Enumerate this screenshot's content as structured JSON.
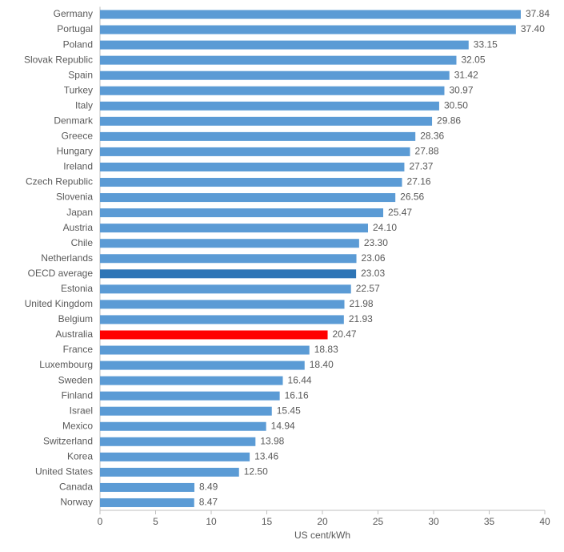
{
  "chart_data": {
    "type": "hbar",
    "categories": [
      "Germany",
      "Portugal",
      "Poland",
      "Slovak Republic",
      "Spain",
      "Turkey",
      "Italy",
      "Denmark",
      "Greece",
      "Hungary",
      "Ireland",
      "Czech Republic",
      "Slovenia",
      "Japan",
      "Austria",
      "Chile",
      "Netherlands",
      "OECD average",
      "Estonia",
      "United Kingdom",
      "Belgium",
      "Australia",
      "France",
      "Luxembourg",
      "Sweden",
      "Finland",
      "Israel",
      "Mexico",
      "Switzerland",
      "Korea",
      "United States",
      "Canada",
      "Norway"
    ],
    "values": [
      37.84,
      37.4,
      33.15,
      32.05,
      31.42,
      30.97,
      30.5,
      29.86,
      28.36,
      27.88,
      27.37,
      27.16,
      26.56,
      25.47,
      24.1,
      23.3,
      23.06,
      23.03,
      22.57,
      21.98,
      21.93,
      20.47,
      18.83,
      18.4,
      16.44,
      16.16,
      15.45,
      14.94,
      13.98,
      13.46,
      12.5,
      8.49,
      8.47
    ],
    "value_labels": [
      "37.84",
      "37.40",
      "33.15",
      "32.05",
      "31.42",
      "30.97",
      "30.50",
      "29.86",
      "28.36",
      "27.88",
      "27.37",
      "27.16",
      "26.56",
      "25.47",
      "24.10",
      "23.30",
      "23.06",
      "23.03",
      "22.57",
      "21.98",
      "21.93",
      "20.47",
      "18.83",
      "18.40",
      "16.44",
      "16.16",
      "15.45",
      "14.94",
      "13.98",
      "13.46",
      "12.50",
      "8.49",
      "8.47"
    ],
    "colors": [
      "#5b9bd5",
      "#5b9bd5",
      "#5b9bd5",
      "#5b9bd5",
      "#5b9bd5",
      "#5b9bd5",
      "#5b9bd5",
      "#5b9bd5",
      "#5b9bd5",
      "#5b9bd5",
      "#5b9bd5",
      "#5b9bd5",
      "#5b9bd5",
      "#5b9bd5",
      "#5b9bd5",
      "#5b9bd5",
      "#5b9bd5",
      "#2e75b6",
      "#5b9bd5",
      "#5b9bd5",
      "#5b9bd5",
      "#ff0000",
      "#5b9bd5",
      "#5b9bd5",
      "#5b9bd5",
      "#5b9bd5",
      "#5b9bd5",
      "#5b9bd5",
      "#5b9bd5",
      "#5b9bd5",
      "#5b9bd5",
      "#5b9bd5",
      "#5b9bd5"
    ],
    "xlabel": "US cent/kWh",
    "xlim": [
      0,
      40
    ],
    "xticks": [
      0,
      5,
      10,
      15,
      20,
      25,
      30,
      35,
      40
    ]
  }
}
